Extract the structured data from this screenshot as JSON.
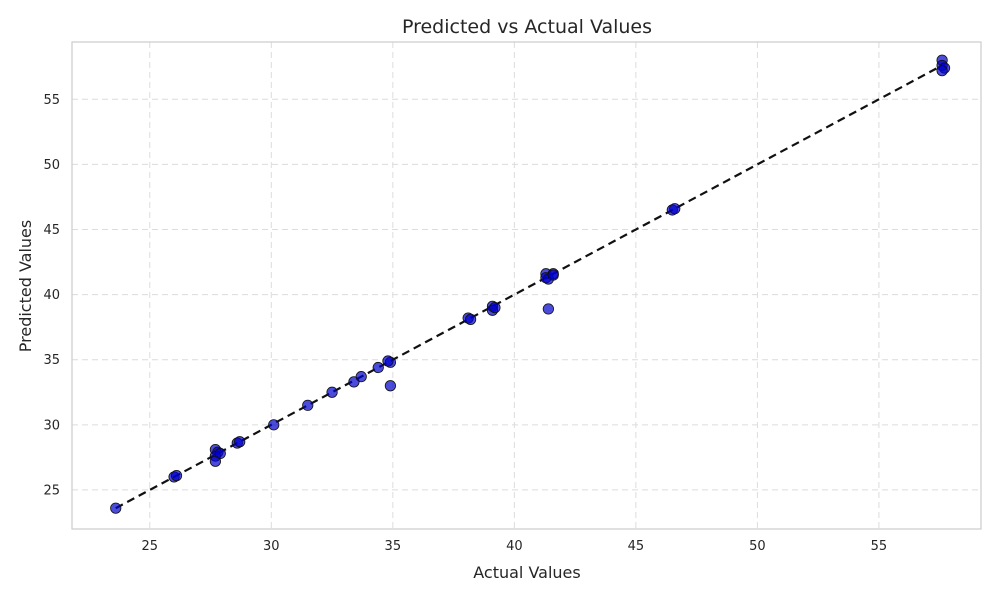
{
  "chart_data": {
    "type": "scatter",
    "title": "Predicted vs Actual Values",
    "xlabel": "Actual Values",
    "ylabel": "Predicted Values",
    "xlim": [
      21.8,
      59.2
    ],
    "ylim": [
      22.0,
      59.4
    ],
    "xticks": [
      25,
      30,
      35,
      40,
      45,
      50,
      55
    ],
    "yticks": [
      25,
      30,
      35,
      40,
      45,
      50,
      55
    ],
    "grid": true,
    "reference_line": {
      "style": "dashed",
      "color": "#111111",
      "from": [
        23.6,
        23.6
      ],
      "to": [
        57.6,
        57.6
      ]
    },
    "point_color": "#0000cc",
    "points": [
      [
        23.6,
        23.6
      ],
      [
        26.0,
        26.0
      ],
      [
        26.1,
        26.1
      ],
      [
        27.7,
        28.1
      ],
      [
        27.8,
        27.9
      ],
      [
        27.7,
        27.6
      ],
      [
        27.7,
        27.2
      ],
      [
        27.9,
        27.8
      ],
      [
        28.6,
        28.6
      ],
      [
        28.7,
        28.7
      ],
      [
        30.1,
        30.0
      ],
      [
        31.5,
        31.5
      ],
      [
        32.5,
        32.5
      ],
      [
        33.4,
        33.3
      ],
      [
        33.7,
        33.7
      ],
      [
        34.4,
        34.4
      ],
      [
        34.9,
        34.8
      ],
      [
        34.8,
        34.9
      ],
      [
        34.9,
        33.0
      ],
      [
        38.1,
        38.2
      ],
      [
        38.2,
        38.1
      ],
      [
        39.1,
        39.1
      ],
      [
        39.1,
        38.8
      ],
      [
        39.2,
        39.0
      ],
      [
        41.3,
        41.6
      ],
      [
        41.3,
        41.3
      ],
      [
        41.4,
        41.2
      ],
      [
        41.6,
        41.6
      ],
      [
        41.6,
        41.5
      ],
      [
        41.4,
        38.9
      ],
      [
        46.5,
        46.5
      ],
      [
        46.6,
        46.6
      ],
      [
        57.6,
        58.0
      ],
      [
        57.6,
        57.6
      ],
      [
        57.7,
        57.4
      ],
      [
        57.6,
        57.2
      ]
    ]
  }
}
